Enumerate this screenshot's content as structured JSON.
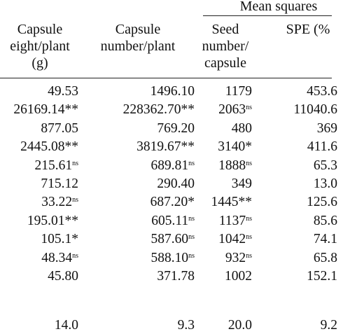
{
  "header": {
    "group_title": "Mean squares",
    "columns": [
      {
        "lines": [
          "Capsule",
          "eight/plant",
          "(g)"
        ]
      },
      {
        "lines": [
          "Capsule",
          "number/plant"
        ]
      },
      {
        "lines": [
          "Seed",
          "number/",
          "capsule"
        ]
      },
      {
        "lines": [
          "SPE (%"
        ]
      }
    ]
  },
  "rows": [
    [
      {
        "v": "49.53",
        "s": ""
      },
      {
        "v": "1496.10",
        "s": ""
      },
      {
        "v": "1179",
        "s": ""
      },
      {
        "v": "453.6",
        "s": ""
      }
    ],
    [
      {
        "v": "26169.14**",
        "s": ""
      },
      {
        "v": "228362.70**",
        "s": ""
      },
      {
        "v": "2063",
        "s": "ns"
      },
      {
        "v": "11040.6",
        "s": ""
      }
    ],
    [
      {
        "v": "877.05",
        "s": ""
      },
      {
        "v": "769.20",
        "s": ""
      },
      {
        "v": "480",
        "s": ""
      },
      {
        "v": "369",
        "s": ""
      }
    ],
    [
      {
        "v": "2445.08**",
        "s": ""
      },
      {
        "v": "3819.67**",
        "s": ""
      },
      {
        "v": "3140*",
        "s": ""
      },
      {
        "v": "411.6",
        "s": ""
      }
    ],
    [
      {
        "v": "215.61",
        "s": "ns"
      },
      {
        "v": "689.81",
        "s": "ns"
      },
      {
        "v": "1888",
        "s": "ns"
      },
      {
        "v": "65.3",
        "s": ""
      }
    ],
    [
      {
        "v": "715.12",
        "s": ""
      },
      {
        "v": "290.40",
        "s": ""
      },
      {
        "v": "349",
        "s": ""
      },
      {
        "v": "13.0",
        "s": ""
      }
    ],
    [
      {
        "v": "33.22",
        "s": "ns"
      },
      {
        "v": "687.20*",
        "s": ""
      },
      {
        "v": "1445**",
        "s": ""
      },
      {
        "v": "125.6",
        "s": ""
      }
    ],
    [
      {
        "v": "195.01**",
        "s": ""
      },
      {
        "v": "605.11",
        "s": "ns"
      },
      {
        "v": "1137",
        "s": "ns"
      },
      {
        "v": "85.6",
        "s": ""
      }
    ],
    [
      {
        "v": "105.1*",
        "s": ""
      },
      {
        "v": "587.60",
        "s": "ns"
      },
      {
        "v": "1042",
        "s": "ns"
      },
      {
        "v": "74.1",
        "s": ""
      }
    ],
    [
      {
        "v": "48.34",
        "s": "ns"
      },
      {
        "v": "588.10",
        "s": "ns"
      },
      {
        "v": "932",
        "s": "ns"
      },
      {
        "v": "65.8",
        "s": ""
      }
    ],
    [
      {
        "v": "45.80",
        "s": ""
      },
      {
        "v": "371.78",
        "s": ""
      },
      {
        "v": "1002",
        "s": ""
      },
      {
        "v": "152.1",
        "s": ""
      }
    ]
  ],
  "last_row": [
    {
      "v": "14.0",
      "s": ""
    },
    {
      "v": "9.3",
      "s": ""
    },
    {
      "v": "20.0",
      "s": ""
    },
    {
      "v": "9.2",
      "s": ""
    }
  ]
}
